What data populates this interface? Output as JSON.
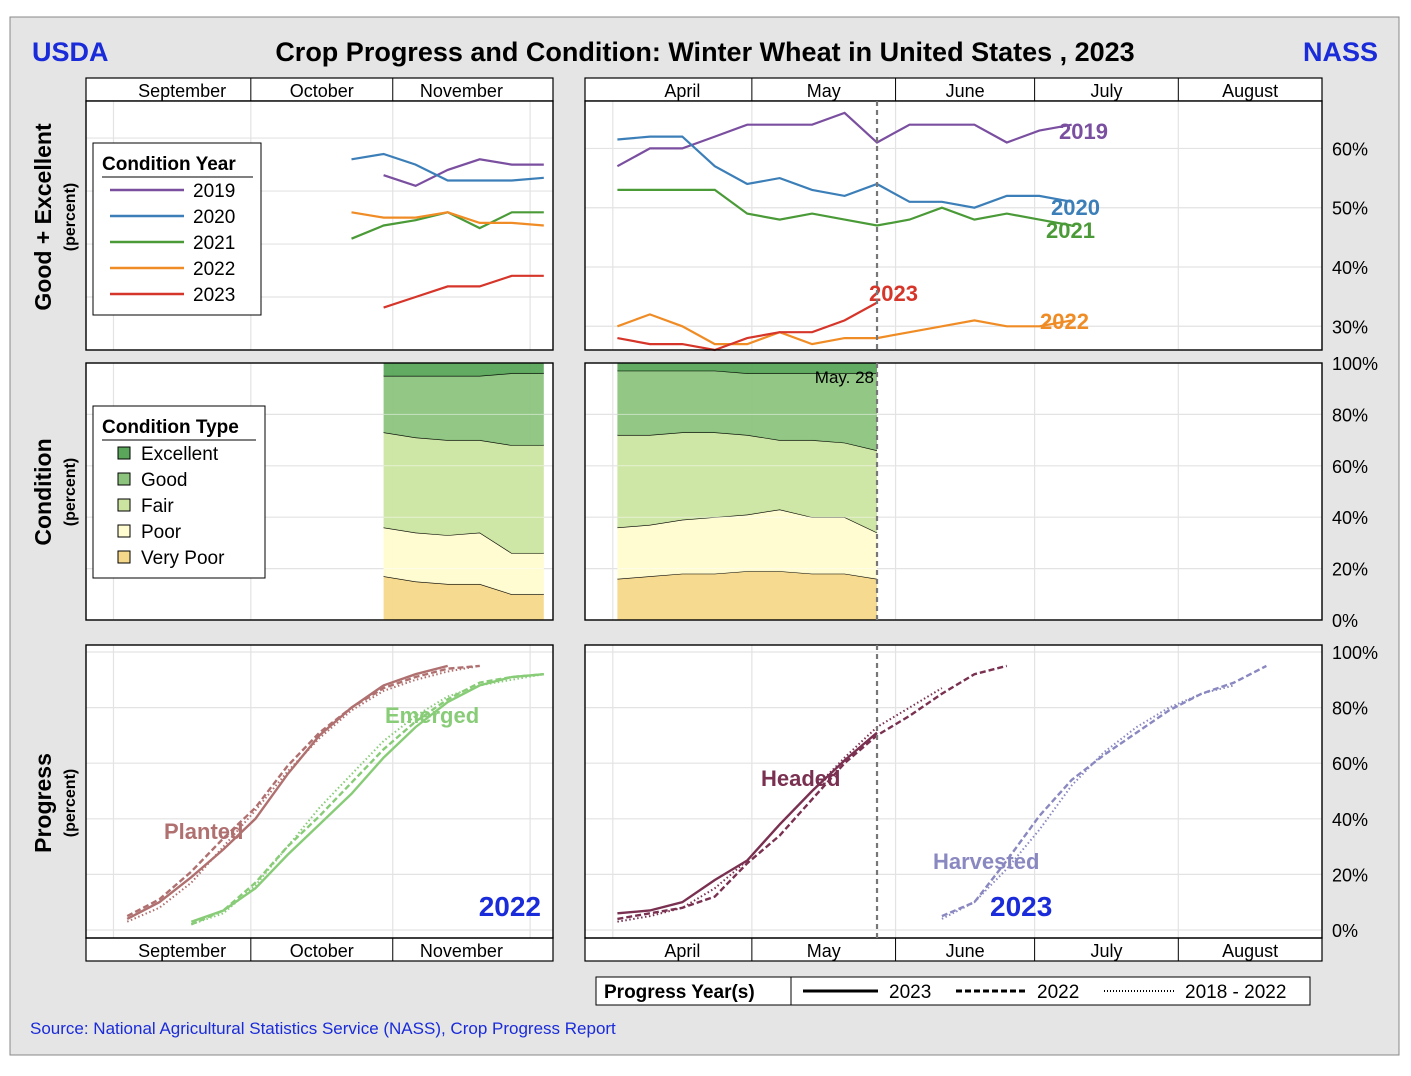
{
  "header": {
    "left": "USDA",
    "title": "Crop Progress and Condition: Winter Wheat in United States , 2023",
    "right": "NASS"
  },
  "source": "Source: National Agricultural Statistics Service (NASS), Crop Progress Report",
  "months_fall": [
    "September",
    "October",
    "November"
  ],
  "months_spring": [
    "April",
    "May",
    "June",
    "July",
    "August"
  ],
  "colors": {
    "background": "#e5e5e5",
    "title_blue": "#1a2bd9",
    "y2019": "#7b4fa0",
    "y2020": "#3c7fb8",
    "y2021": "#4a9a38",
    "y2022": "#f08c25",
    "y2023": "#d6352a",
    "excellent": "#5aa65a",
    "good": "#8cc47e",
    "fair": "#cbe5a1",
    "poor": "#fffccf",
    "very_poor": "#f5d88a",
    "planted": "#b07070",
    "emerged": "#88cc78",
    "headed": "#7a3050",
    "harvested": "#8a88c0"
  },
  "rows": {
    "good_excellent": {
      "title": "Good + Excellent",
      "unit": "(percent)",
      "ticks": [
        "30%",
        "40%",
        "50%",
        "60%"
      ]
    },
    "condition": {
      "title": "Condition",
      "unit": "(percent)",
      "ticks": [
        "0%",
        "20%",
        "40%",
        "60%",
        "80%",
        "100%"
      ]
    },
    "progress": {
      "title": "Progress",
      "unit": "(percent)",
      "ticks": [
        "0%",
        "20%",
        "40%",
        "60%",
        "80%",
        "100%"
      ]
    }
  },
  "legend_condition_year": {
    "title": "Condition Year",
    "items": [
      "2019",
      "2020",
      "2021",
      "2022",
      "2023"
    ]
  },
  "legend_condition_type": {
    "title": "Condition Type",
    "items": [
      "Excellent",
      "Good",
      "Fair",
      "Poor",
      "Very Poor"
    ]
  },
  "legend_progress": {
    "title": "Progress Year(s)",
    "items": [
      "2023",
      "2022",
      "2018 - 2022"
    ]
  },
  "annotations": {
    "date_marker": "May. 28",
    "year_fall": "2022",
    "year_spring": "2023",
    "planted": "Planted",
    "emerged": "Emerged",
    "headed": "Headed",
    "harvested": "Harvested"
  },
  "chart_data": [
    {
      "type": "line",
      "title": "Good + Excellent",
      "ylabel": "(percent)",
      "x_axis": "week (fall: Sep–Nov 2022, spring: Apr–Aug 2023)",
      "ylim_fall": [
        20,
        67
      ],
      "ylim_spring": [
        26,
        68
      ],
      "fall": {
        "x": [
          "Oct 23",
          "Oct 30",
          "Nov 6",
          "Nov 13",
          "Nov 20",
          "Nov 27",
          "Dec 4"
        ],
        "series": [
          {
            "name": "2019",
            "values": [
              null,
              53,
              51,
              54,
              56,
              55,
              55
            ]
          },
          {
            "name": "2020",
            "values": [
              56,
              57,
              55,
              52,
              52,
              52,
              52.5
            ]
          },
          {
            "name": "2021",
            "values": [
              41,
              43.5,
              44.5,
              46,
              43,
              46,
              46
            ]
          },
          {
            "name": "2022",
            "values": [
              46,
              45,
              45,
              46,
              44,
              44,
              43.5
            ]
          },
          {
            "name": "2023",
            "values": [
              null,
              28,
              30,
              32,
              32,
              34,
              34
            ]
          }
        ]
      },
      "spring": {
        "x": [
          "Apr 2",
          "Apr 9",
          "Apr 16",
          "Apr 23",
          "Apr 30",
          "May 7",
          "May 14",
          "May 21",
          "May 28",
          "Jun 4",
          "Jun 11",
          "Jun 18",
          "Jun 25",
          "Jul 2",
          "Jul 9"
        ],
        "series": [
          {
            "name": "2019",
            "values": [
              57,
              60,
              60,
              62,
              64,
              64,
              64,
              66,
              61,
              64,
              64,
              64,
              61,
              63,
              64
            ]
          },
          {
            "name": "2020",
            "values": [
              61.5,
              62,
              62,
              57,
              54,
              55,
              53,
              52,
              54,
              51,
              51,
              50,
              52,
              52,
              51
            ]
          },
          {
            "name": "2021",
            "values": [
              53,
              53,
              53,
              53,
              49,
              48,
              49,
              48,
              47,
              48,
              50,
              48,
              49,
              48,
              47
            ]
          },
          {
            "name": "2022",
            "values": [
              30,
              32,
              30,
              27,
              27,
              29,
              27,
              28,
              28,
              29,
              30,
              31,
              30,
              30,
              31
            ]
          },
          {
            "name": "2023",
            "values": [
              28,
              27,
              27,
              26,
              28,
              29,
              29,
              31,
              34,
              null,
              null,
              null,
              null,
              null,
              null
            ]
          }
        ]
      }
    },
    {
      "type": "area",
      "title": "Condition",
      "ylabel": "(percent)",
      "stack_order": [
        "Very Poor",
        "Poor",
        "Fair",
        "Good",
        "Excellent"
      ],
      "ylim": [
        0,
        100
      ],
      "fall": {
        "x": [
          "Oct 30",
          "Nov 6",
          "Nov 13",
          "Nov 20",
          "Nov 27",
          "Dec 4"
        ],
        "series": [
          {
            "name": "Very Poor",
            "values": [
              17,
              15,
              14,
              14,
              10,
              10
            ]
          },
          {
            "name": "Poor",
            "values": [
              19,
              19,
              19,
              20,
              16,
              16
            ]
          },
          {
            "name": "Fair",
            "values": [
              37,
              37,
              37,
              36,
              42,
              42
            ]
          },
          {
            "name": "Good",
            "values": [
              22,
              24,
              25,
              25,
              28,
              28
            ]
          },
          {
            "name": "Excellent",
            "values": [
              5,
              5,
              5,
              5,
              4,
              4
            ]
          }
        ]
      },
      "spring": {
        "x": [
          "Apr 2",
          "Apr 9",
          "Apr 16",
          "Apr 23",
          "Apr 30",
          "May 7",
          "May 14",
          "May 21",
          "May 28"
        ],
        "series": [
          {
            "name": "Very Poor",
            "values": [
              16,
              17,
              18,
              18,
              19,
              19,
              18,
              18,
              16
            ]
          },
          {
            "name": "Poor",
            "values": [
              20,
              20,
              21,
              22,
              22,
              24,
              22,
              22,
              18
            ]
          },
          {
            "name": "Fair",
            "values": [
              36,
              35,
              34,
              33,
              31,
              27,
              30,
              29,
              32
            ]
          },
          {
            "name": "Good",
            "values": [
              25,
              25,
              24,
              24,
              24,
              26,
              26,
              27,
              30
            ]
          },
          {
            "name": "Excellent",
            "values": [
              3,
              3,
              3,
              3,
              4,
              4,
              4,
              4,
              4
            ]
          }
        ]
      }
    },
    {
      "type": "line",
      "title": "Progress",
      "ylabel": "(percent)",
      "ylim": [
        0,
        100
      ],
      "fall_year": "2022",
      "spring_year": "2023",
      "fall": {
        "x": [
          "Sep 4",
          "Sep 11",
          "Sep 18",
          "Sep 25",
          "Oct 2",
          "Oct 9",
          "Oct 16",
          "Oct 23",
          "Oct 30",
          "Nov 6",
          "Nov 13",
          "Nov 20",
          "Nov 27",
          "Dec 4"
        ],
        "series": [
          {
            "name": "Planted 2022",
            "values": [
              4,
              10,
              19,
              29,
              40,
              56,
              70,
              80,
              88,
              92,
              95,
              null,
              null,
              null
            ]
          },
          {
            "name": "Planted 2018 - 2022",
            "values": [
              5,
              11,
              21,
              33,
              44,
              59,
              71,
              80,
              87,
              91,
              94,
              95,
              null,
              null
            ]
          },
          {
            "name": "Planted 2018 - 2022 avg",
            "values": [
              3,
              8,
              17,
              30,
              43,
              57,
              69,
              79,
              86,
              90,
              93,
              95,
              null,
              null
            ]
          },
          {
            "name": "Emerged 2022",
            "values": [
              null,
              null,
              3,
              7,
              15,
              27,
              38,
              49,
              62,
              73,
              82,
              88,
              91,
              92
            ]
          },
          {
            "name": "Emerged 2018 - 2022",
            "values": [
              null,
              null,
              2,
              7,
              17,
              30,
              41,
              53,
              65,
              75,
              83,
              89,
              91,
              92
            ]
          },
          {
            "name": "Emerged 2018 - 2022 avg",
            "values": [
              null,
              null,
              2,
              6,
              16,
              30,
              44,
              56,
              68,
              77,
              84,
              88,
              90,
              92
            ]
          }
        ]
      },
      "spring": {
        "x": [
          "Apr 2",
          "Apr 9",
          "Apr 16",
          "Apr 23",
          "Apr 30",
          "May 7",
          "May 14",
          "May 21",
          "May 28",
          "Jun 4",
          "Jun 11",
          "Jun 18",
          "Jun 25",
          "Jul 2",
          "Jul 9",
          "Jul 16",
          "Jul 23",
          "Jul 30",
          "Aug 6",
          "Aug 13",
          "Aug 20"
        ],
        "series": [
          {
            "name": "Headed 2023",
            "values": [
              6,
              7,
              10,
              18,
              25,
              38,
              50,
              61,
              71,
              null,
              null,
              null,
              null,
              null,
              null,
              null,
              null,
              null,
              null,
              null,
              null
            ]
          },
          {
            "name": "Headed 2022",
            "values": [
              4,
              6,
              8,
              12,
              24,
              34,
              47,
              60,
              70,
              77,
              85,
              92,
              95,
              null,
              null,
              null,
              null,
              null,
              null,
              null,
              null
            ]
          },
          {
            "name": "Headed 2018 - 2022",
            "values": [
              3,
              5,
              8,
              15,
              25,
              38,
              50,
              62,
              73,
              80,
              87,
              null,
              null,
              null,
              null,
              null,
              null,
              null,
              null,
              null,
              null
            ]
          },
          {
            "name": "Harvested 2022",
            "values": [
              null,
              null,
              null,
              null,
              null,
              null,
              null,
              null,
              null,
              null,
              5,
              10,
              25,
              41,
              54,
              63,
              71,
              79,
              85,
              89,
              95
            ]
          },
          {
            "name": "Harvested 2018 - 2022",
            "values": [
              null,
              null,
              null,
              null,
              null,
              null,
              null,
              null,
              null,
              null,
              4,
              10,
              22,
              36,
              52,
              64,
              73,
              80,
              85,
              88,
              null
            ]
          }
        ]
      }
    }
  ]
}
